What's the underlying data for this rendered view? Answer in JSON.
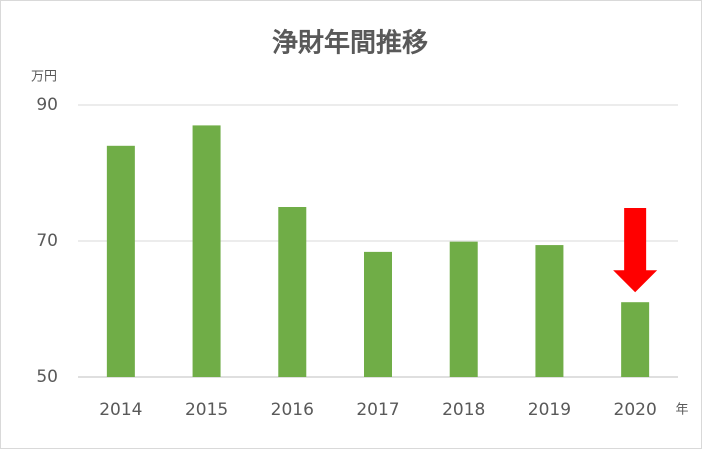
{
  "chart_data": {
    "type": "bar",
    "title": "浄財年間推移",
    "y_unit": "万円",
    "x_unit": "年",
    "categories": [
      "2014",
      "2015",
      "2016",
      "2017",
      "2018",
      "2019",
      "2020"
    ],
    "values": [
      84,
      87,
      75,
      68.4,
      69.9,
      69.4,
      61
    ],
    "color": "#70ad47",
    "ylim": [
      50,
      90
    ],
    "yticks": [
      50,
      70,
      90
    ],
    "grid": true
  }
}
